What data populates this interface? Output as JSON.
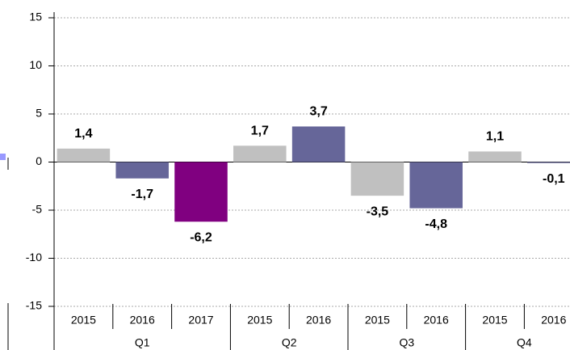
{
  "chart_data": {
    "type": "bar",
    "groups": [
      {
        "label": "Q1",
        "categories": [
          "2015",
          "2016",
          "2017"
        ],
        "values": [
          1.4,
          -1.7,
          -6.2
        ],
        "value_labels": [
          "1,4",
          "-1,7",
          "-6,2"
        ],
        "colors": [
          "#c0c0c0",
          "#666699",
          "#800080"
        ]
      },
      {
        "label": "Q2",
        "categories": [
          "2015",
          "2016"
        ],
        "values": [
          1.7,
          3.7
        ],
        "value_labels": [
          "1,7",
          "3,7"
        ],
        "colors": [
          "#c0c0c0",
          "#666699"
        ]
      },
      {
        "label": "Q3",
        "categories": [
          "2015",
          "2016"
        ],
        "values": [
          -3.5,
          -4.8
        ],
        "value_labels": [
          "-3,5",
          "-4,8"
        ],
        "colors": [
          "#c0c0c0",
          "#666699"
        ]
      },
      {
        "label": "Q4",
        "categories": [
          "2015",
          "2016"
        ],
        "values": [
          1.1,
          -0.1
        ],
        "value_labels": [
          "1,1",
          "-0,1"
        ],
        "colors": [
          "#c0c0c0",
          "#666699"
        ]
      }
    ],
    "ylim": [
      -15,
      15
    ],
    "yticks": [
      -15,
      -10,
      -5,
      0,
      5,
      10,
      15
    ],
    "grid": true
  }
}
